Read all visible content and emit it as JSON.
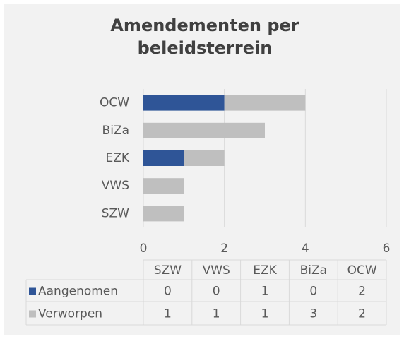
{
  "chart_data": {
    "type": "stacked_barh",
    "title": "Amendementen per beleidsterrein",
    "categories": [
      "SZW",
      "VWS",
      "EZK",
      "BiZa",
      "OCW"
    ],
    "series": [
      {
        "name": "Aangenomen",
        "color": "#2f5597",
        "values": [
          0,
          0,
          1,
          0,
          2
        ]
      },
      {
        "name": "Verworpen",
        "color": "#bfbfbf",
        "values": [
          1,
          1,
          1,
          3,
          2
        ]
      }
    ],
    "xlim": [
      0,
      6
    ],
    "xticks": [
      0,
      2,
      4,
      6
    ],
    "grid": true,
    "data_table": true
  }
}
